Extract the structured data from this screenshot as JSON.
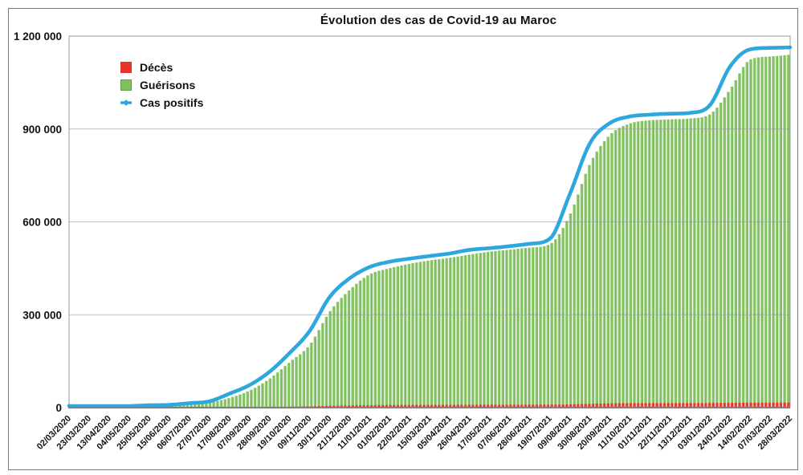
{
  "title": "Évolution des cas de Covid-19 au Maroc",
  "legend": {
    "items": [
      {
        "label": "Décès"
      },
      {
        "label": "Guérisons"
      },
      {
        "label": "Cas positifs"
      }
    ]
  },
  "colors": {
    "deces": "#e5352b",
    "deces_light": "#f0836f",
    "guerisons": "#7fbf5f",
    "guerisons_light": "#b6dc9e",
    "guerisons_border": "#5e9e41",
    "cas_positifs": "#2ea7df",
    "grid": "#9a9a9a",
    "axis": "#7f7f7f",
    "text": "#111111"
  },
  "chart_data": {
    "type": "bar",
    "title": "Évolution des cas de Covid-19 au Maroc",
    "xlabel": "",
    "ylabel": "",
    "ylim": [
      0,
      1200000
    ],
    "yticks": [
      0,
      300000,
      600000,
      900000,
      1200000
    ],
    "grid": true,
    "legend_position": "top-left",
    "categories": [
      "02/03/2020",
      "23/03/2020",
      "13/04/2020",
      "04/05/2020",
      "25/05/2020",
      "15/06/2020",
      "06/07/2020",
      "27/07/2020",
      "17/08/2020",
      "07/09/2020",
      "28/09/2020",
      "19/10/2020",
      "09/11/2020",
      "30/11/2020",
      "21/12/2020",
      "11/01/2021",
      "01/02/2021",
      "22/02/2021",
      "15/03/2021",
      "05/04/2021",
      "26/04/2021",
      "17/05/2021",
      "07/06/2021",
      "28/06/2021",
      "19/07/2021",
      "09/08/2021",
      "30/08/2021",
      "20/09/2021",
      "11/10/2021",
      "01/11/2021",
      "22/11/2021",
      "13/12/2021",
      "03/01/2022",
      "24/01/2022",
      "14/02/2022",
      "07/03/2022",
      "28/03/2022"
    ],
    "series": [
      {
        "name": "Décès",
        "render": "bar",
        "values": [
          0,
          4,
          126,
          174,
          200,
          212,
          240,
          313,
          681,
          1361,
          2041,
          2976,
          4127,
          5846,
          6957,
          7888,
          8323,
          8574,
          8733,
          8877,
          9018,
          9115,
          9192,
          9287,
          9583,
          10240,
          12301,
          13703,
          14466,
          14702,
          14779,
          14841,
          14960,
          15383,
          16008,
          16097,
          16152
        ]
      },
      {
        "name": "Guérisons",
        "render": "bar",
        "values": [
          0,
          3,
          126,
          1438,
          4774,
          7712,
          9837,
          16438,
          31273,
          54847,
          93017,
          146400,
          202000,
          308900,
          380100,
          430300,
          450052,
          464400,
          475600,
          484100,
          494400,
          503900,
          510100,
          516700,
          528100,
          623000,
          787700,
          881000,
          918000,
          928000,
          931000,
          934000,
          948000,
          1028000,
          1124000,
          1134000,
          1140000
        ]
      },
      {
        "name": "Cas positifs",
        "render": "line",
        "values": [
          1,
          115,
          1763,
          4903,
          7532,
          8885,
          14215,
          20278,
          44803,
          72394,
          115241,
          175749,
          246349,
          356336,
          417125,
          453789,
          471157,
          481263,
          489622,
          497832,
          509465,
          515023,
          521426,
          529061,
          545277,
          689426,
          853475,
          918967,
          940233,
          946371,
          949263,
          952123,
          977184,
          1102014,
          1157128,
          1161999,
          1163465
        ]
      }
    ]
  }
}
